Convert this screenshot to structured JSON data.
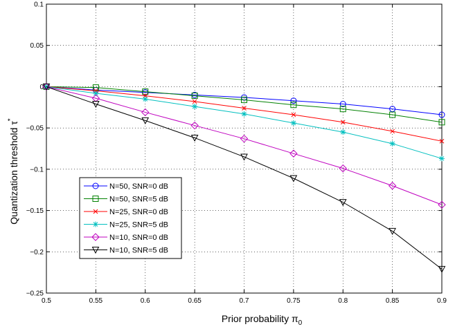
{
  "chart_data": {
    "type": "line",
    "xlabel_main": "Prior probability π",
    "xlabel_sub": "0",
    "ylabel_main": "Quantization threshold τ",
    "ylabel_sup": "*",
    "xlim": [
      0.5,
      0.9
    ],
    "ylim": [
      -0.25,
      0.1
    ],
    "xticks": [
      0.5,
      0.55,
      0.6,
      0.65,
      0.7,
      0.75,
      0.8,
      0.85,
      0.9
    ],
    "yticks": [
      0.1,
      0.05,
      0,
      -0.05,
      -0.1,
      -0.15,
      -0.2,
      -0.25
    ],
    "xtick_labels": [
      "0.5",
      "0.55",
      "0.6",
      "0.65",
      "0.7",
      "0.75",
      "0.8",
      "0.85",
      "0.9"
    ],
    "ytick_labels": [
      "0.1",
      "0.05",
      "0",
      "−0.05",
      "−0.1",
      "−0.15",
      "−0.2",
      "−0.25"
    ],
    "grid": true,
    "legend_position": "bottom-left",
    "x": [
      0.5,
      0.55,
      0.6,
      0.65,
      0.7,
      0.75,
      0.8,
      0.85,
      0.9
    ],
    "series": [
      {
        "name": "N=50, SNR=0 dB",
        "color": "#0000ff",
        "marker": "circle",
        "values": [
          0,
          -0.004,
          -0.007,
          -0.01,
          -0.013,
          -0.017,
          -0.021,
          -0.027,
          -0.034
        ]
      },
      {
        "name": "N=50, SNR=5 dB",
        "color": "#008000",
        "marker": "square",
        "values": [
          0,
          -0.001,
          -0.006,
          -0.011,
          -0.016,
          -0.022,
          -0.027,
          -0.034,
          -0.043
        ]
      },
      {
        "name": "N=25, SNR=0 dB",
        "color": "#ff0000",
        "marker": "x",
        "values": [
          0,
          -0.005,
          -0.011,
          -0.018,
          -0.026,
          -0.034,
          -0.043,
          -0.054,
          -0.066
        ]
      },
      {
        "name": "N=25, SNR=5 dB",
        "color": "#00bfbf",
        "marker": "star",
        "values": [
          0,
          -0.008,
          -0.015,
          -0.024,
          -0.033,
          -0.044,
          -0.055,
          -0.069,
          -0.087
        ]
      },
      {
        "name": "N=10, SNR=0 dB",
        "color": "#bf00bf",
        "marker": "diamond",
        "values": [
          0,
          -0.014,
          -0.031,
          -0.047,
          -0.063,
          -0.081,
          -0.099,
          -0.12,
          -0.143
        ]
      },
      {
        "name": "N=10, SNR=5 dB",
        "color": "#000000",
        "marker": "triangle-down",
        "values": [
          0,
          -0.021,
          -0.041,
          -0.062,
          -0.085,
          -0.111,
          -0.14,
          -0.175,
          -0.221
        ]
      }
    ]
  }
}
